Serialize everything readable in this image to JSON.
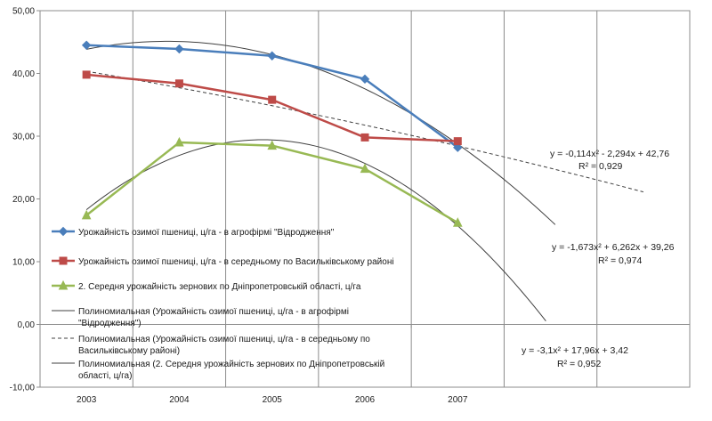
{
  "chart_data": {
    "type": "line",
    "title": "",
    "xlabel": "",
    "ylabel": "",
    "categories": [
      "2003",
      "2004",
      "2005",
      "2006",
      "2007"
    ],
    "ylim": [
      -10,
      50
    ],
    "y_tick_labels": [
      "-10,00",
      "0,00",
      "10,00",
      "20,00",
      "30,00",
      "40,00",
      "50,00"
    ],
    "grid": "vertical gridlines only",
    "legend_position": "left, inside plot area",
    "series": [
      {
        "name": "Урожайність озимої пшениці, ц/га - в агрофірмі \"Відродження\"",
        "color": "#4a7ebb",
        "marker": "diamond",
        "values": [
          44.5,
          43.9,
          42.8,
          39.1,
          28.2
        ]
      },
      {
        "name": "Урожайність озимої пшениці, ц/га - в середньому по Васильківському районі",
        "color": "#be4b48",
        "marker": "square",
        "values": [
          39.8,
          38.4,
          35.8,
          29.8,
          29.2
        ]
      },
      {
        "name": "2. Середня урожайність зернових по Дніпропетровській області, ц/га",
        "color": "#98b954",
        "marker": "triangle",
        "values": [
          17.4,
          29.0,
          28.5,
          24.8,
          16.2
        ]
      }
    ],
    "trendlines": [
      {
        "name": "Полиномиальная (Урожайність озимої пшениці, ц/га - в агрофірмі \"Відродження\")",
        "style": "solid",
        "color": "#404040",
        "coefficients": [
          -1.673,
          6.262,
          39.26
        ],
        "x_range": [
          1,
          6.05
        ],
        "equation": "y = -1,673x² + 6,262x + 39,26",
        "r2": "R² = 0,974"
      },
      {
        "name": "Полиномиальная (Урожайність озимої пшениці, ц/га - в середньому по Васильківському районі)",
        "style": "dashed",
        "color": "#404040",
        "coefficients": [
          -0.114,
          -2.294,
          42.76
        ],
        "x_range": [
          1,
          7.0
        ],
        "equation": "y = -0,114x² - 2,294x + 42,76",
        "r2": "R² = 0,929"
      },
      {
        "name": "Полиномиальная (2. Середня урожайність зернових по Дніпропетровській області, ц/га)",
        "style": "solid",
        "color": "#404040",
        "coefficients": [
          -3.1,
          17.96,
          3.42
        ],
        "x_range": [
          1,
          5.95
        ],
        "equation": "y = -3,1x² + 17,96x + 3,42",
        "r2": "R² = 0,952"
      }
    ],
    "annotations": [
      {
        "text": "y = -0,114x² - 2,294x + 42,76",
        "r2": "R² = 0,929"
      },
      {
        "text": "y = -1,673x² + 6,262x + 39,26",
        "r2": "R² = 0,974"
      },
      {
        "text": "y = -3,1x² + 17,96x + 3,42",
        "r2": "R² = 0,952"
      }
    ]
  },
  "legend": {
    "entries": [
      {
        "line1": "Урожайність озимої пшениці, ц/га - в агрофірмі \"Відродження\"",
        "line2": ""
      },
      {
        "line1": "Урожайність озимої пшениці, ц/га - в середньому по Васильківському районі",
        "line2": ""
      },
      {
        "line1": "2. Середня урожайність зернових по Дніпропетровській області, ц/га",
        "line2": ""
      },
      {
        "line1": "Полиномиальная (Урожайність озимої пшениці, ц/га - в агрофірмі",
        "line2": "\"Відродження\")"
      },
      {
        "line1": "Полиномиальная (Урожайність озимої пшениці, ц/га - в середньому по",
        "line2": "Васильківському районі)"
      },
      {
        "line1": "Полиномиальная (2. Середня урожайність зернових по Дніпропетровській",
        "line2": "області, ц/га)"
      }
    ]
  }
}
